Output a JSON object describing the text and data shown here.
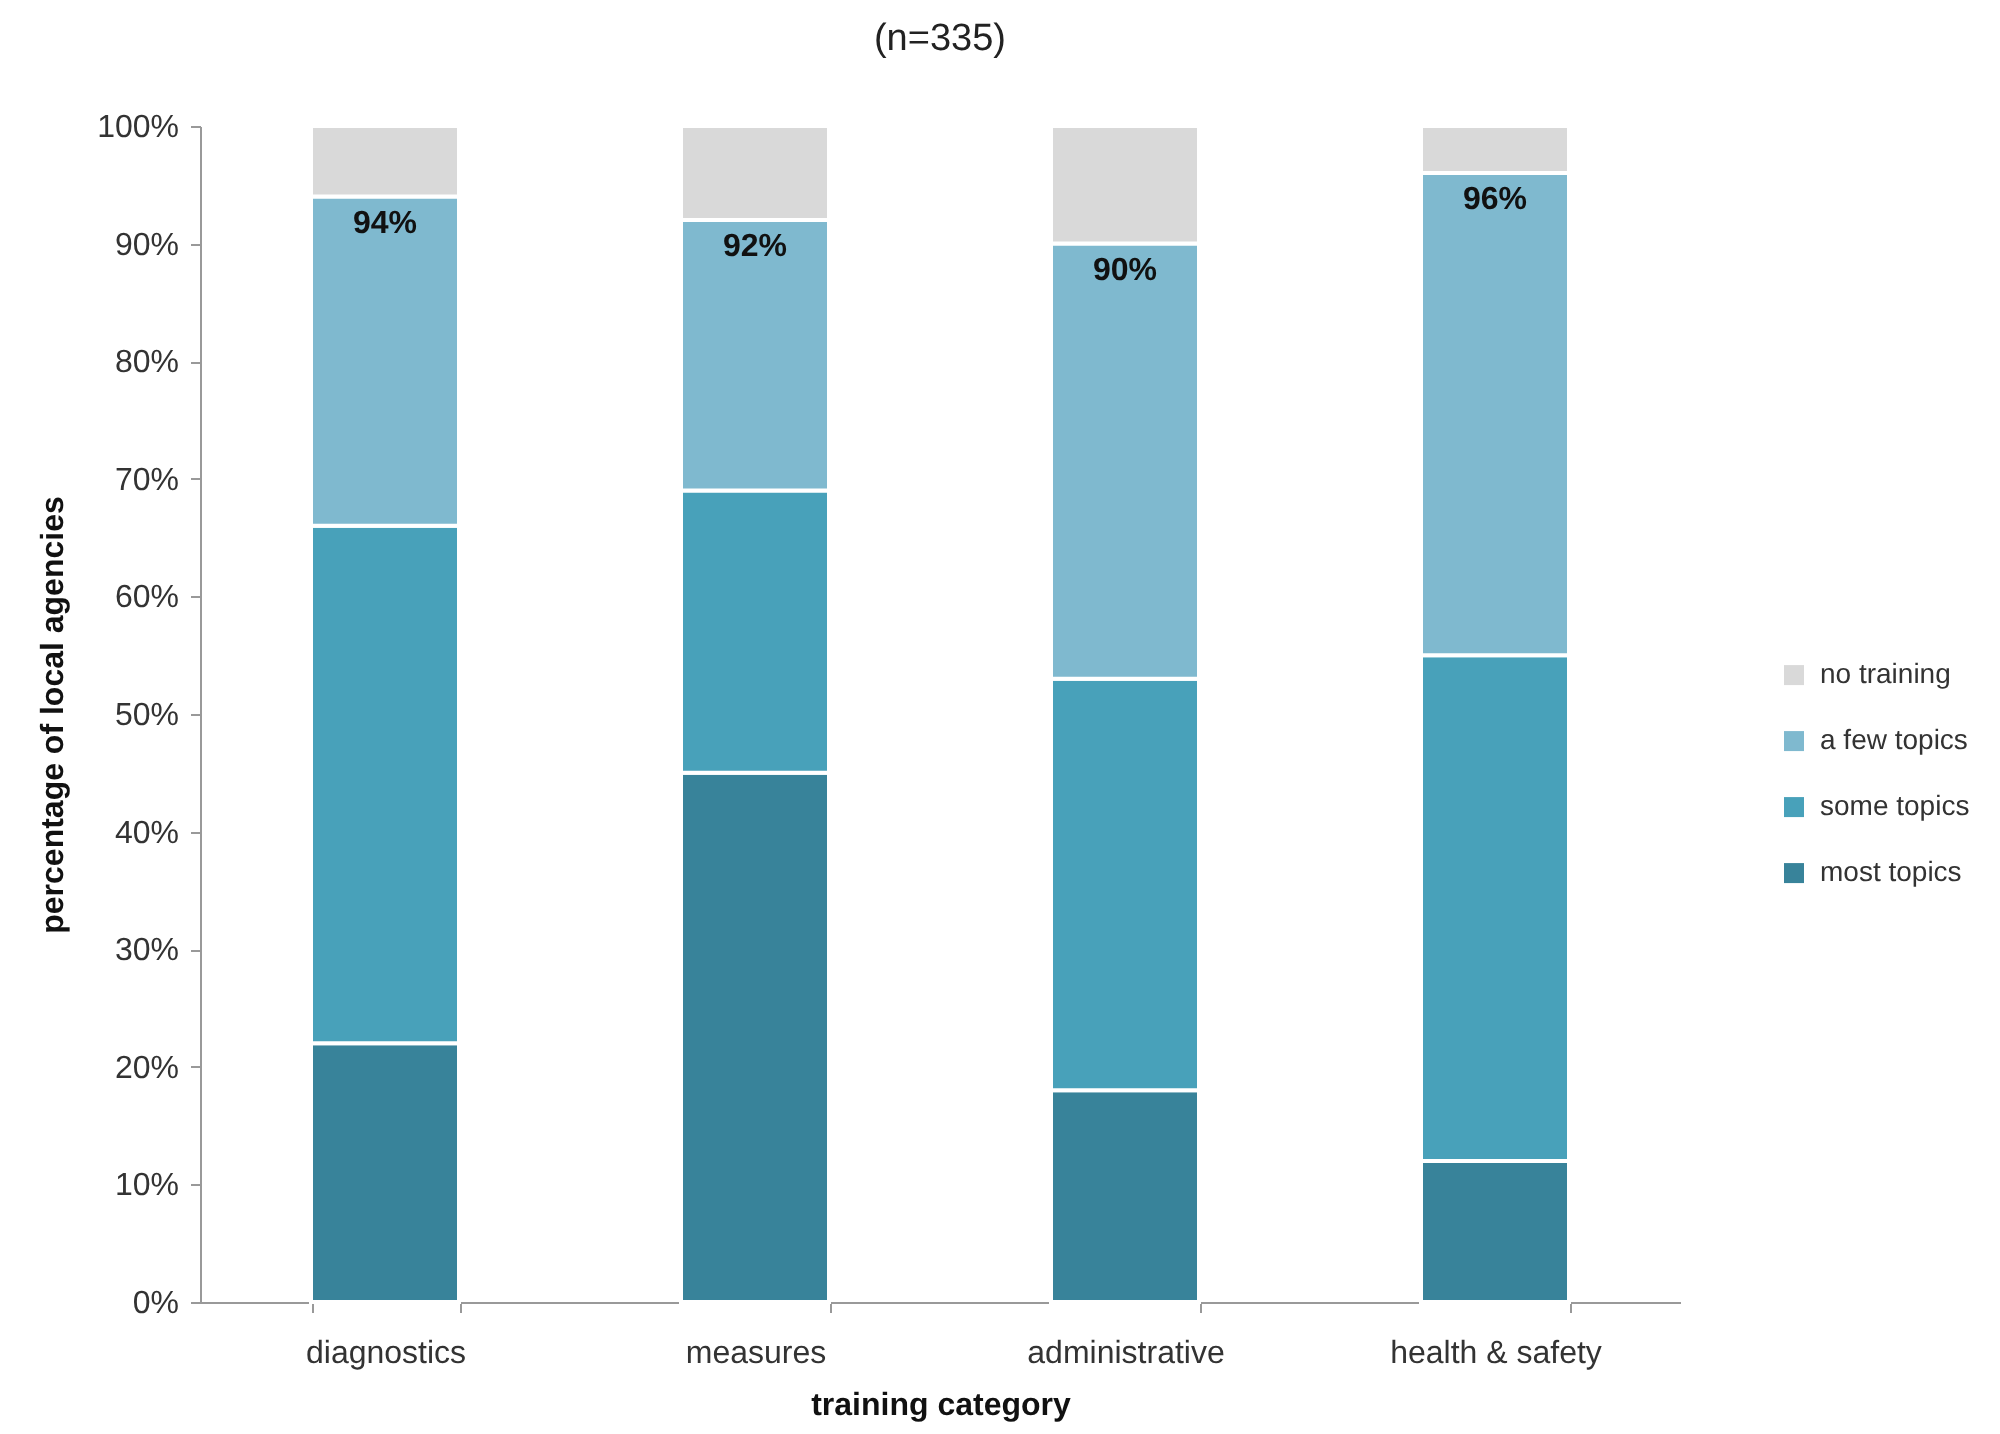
{
  "chart_data": {
    "type": "bar",
    "title": "(n=335)",
    "xlabel": "training category",
    "ylabel": "percentage of local agencies",
    "categories": [
      "diagnostics",
      "measures",
      "administrative",
      "health & safety"
    ],
    "stacked": true,
    "series": [
      {
        "name": "most topics",
        "color": "#38839a",
        "values": [
          22,
          45,
          18,
          12
        ]
      },
      {
        "name": "some topics",
        "color": "#48a1ba",
        "values": [
          44,
          24,
          35,
          43
        ]
      },
      {
        "name": "a few topics",
        "color": "#7fb9cf",
        "values": [
          28,
          23,
          37,
          41
        ]
      },
      {
        "name": "no training",
        "color": "#d9d9d9",
        "values": [
          6,
          8,
          10,
          4
        ]
      }
    ],
    "ylim": [
      0,
      100
    ],
    "yticks": [
      {
        "value": 0,
        "label": "0%"
      },
      {
        "value": 10,
        "label": "10%"
      },
      {
        "value": 20,
        "label": "20%"
      },
      {
        "value": 30,
        "label": "30%"
      },
      {
        "value": 40,
        "label": "40%"
      },
      {
        "value": 50,
        "label": "50%"
      },
      {
        "value": 60,
        "label": "60%"
      },
      {
        "value": 70,
        "label": "70%"
      },
      {
        "value": 80,
        "label": "80%"
      },
      {
        "value": 90,
        "label": "90%"
      },
      {
        "value": 100,
        "label": "100%"
      }
    ],
    "legend": "right",
    "annotations": [
      {
        "text": "94%",
        "x": "diagnostics",
        "y": 94
      },
      {
        "text": "92%",
        "x": "measures",
        "y": 92
      },
      {
        "text": "90%",
        "x": "administrative",
        "y": 90
      },
      {
        "text": "96%",
        "x": "health & safety",
        "y": 96
      }
    ]
  }
}
